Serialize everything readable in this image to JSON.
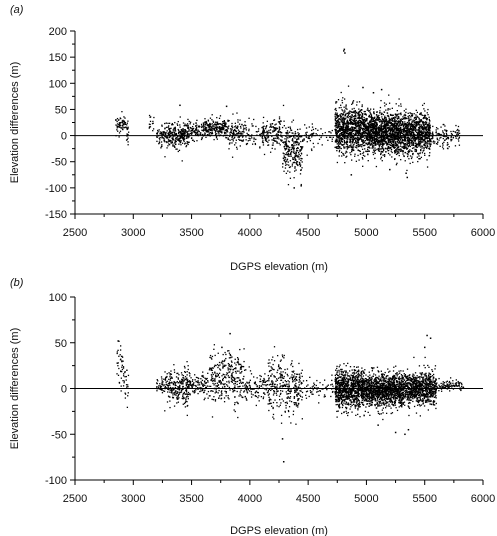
{
  "chart_data": [
    {
      "type": "scatter",
      "panel_label": "(a)",
      "xlabel": "DGPS  elevation (m)",
      "ylabel": "Elevation differences (m)",
      "xlim": [
        2500,
        6000
      ],
      "ylim": [
        -150,
        200
      ],
      "xticks": [
        2500,
        3000,
        3500,
        4000,
        4500,
        5000,
        5500,
        6000
      ],
      "yticks": [
        -150,
        -100,
        -50,
        0,
        50,
        100,
        150,
        200
      ],
      "reference_line_y": 0,
      "marker_color": "#000000",
      "clusters": [
        {
          "x_range": [
            2850,
            2940
          ],
          "y_mean": 22,
          "y_sd": 8,
          "n": 60
        },
        {
          "x_range": [
            2940,
            2960
          ],
          "y_mean": 5,
          "y_sd": 14,
          "n": 20
        },
        {
          "x_range": [
            3130,
            3180
          ],
          "y_mean": 25,
          "y_sd": 8,
          "n": 15
        },
        {
          "x_range": [
            3200,
            3300
          ],
          "y_mean": 0,
          "y_sd": 10,
          "n": 80
        },
        {
          "x_range": [
            3300,
            3480
          ],
          "y_mean": 2,
          "y_sd": 12,
          "n": 250
        },
        {
          "x_range": [
            3480,
            3600
          ],
          "y_mean": 8,
          "y_sd": 9,
          "n": 80
        },
        {
          "x_range": [
            3600,
            3800
          ],
          "y_mean": 15,
          "y_sd": 9,
          "n": 230
        },
        {
          "x_range": [
            3800,
            3950
          ],
          "y_mean": 5,
          "y_sd": 12,
          "n": 120
        },
        {
          "x_range": [
            3950,
            4100
          ],
          "y_mean": 2,
          "y_sd": 10,
          "n": 50
        },
        {
          "x_range": [
            4100,
            4280
          ],
          "y_mean": 3,
          "y_sd": 13,
          "n": 150
        },
        {
          "x_range": [
            4280,
            4450
          ],
          "y_mean": -28,
          "y_sd": 25,
          "n": 250
        },
        {
          "x_range": [
            4450,
            4550
          ],
          "y_mean": 0,
          "y_sd": 12,
          "n": 40
        },
        {
          "x_range": [
            4550,
            4720
          ],
          "y_mean": 5,
          "y_sd": 10,
          "n": 25
        },
        {
          "x_range": [
            4730,
            5000
          ],
          "y_mean": 12,
          "y_sd": 22,
          "n": 900
        },
        {
          "x_range": [
            5000,
            5300
          ],
          "y_mean": 5,
          "y_sd": 20,
          "n": 1200
        },
        {
          "x_range": [
            5300,
            5550
          ],
          "y_mean": 2,
          "y_sd": 20,
          "n": 800
        },
        {
          "x_range": [
            5550,
            5800
          ],
          "y_mean": -2,
          "y_sd": 10,
          "n": 120
        }
      ],
      "outliers": [
        {
          "x": 4810,
          "y": 165
        },
        {
          "x": 4815,
          "y": 158
        },
        {
          "x": 4805,
          "y": 162
        },
        {
          "x": 4970,
          "y": 92
        },
        {
          "x": 5060,
          "y": 82
        },
        {
          "x": 5130,
          "y": 88
        },
        {
          "x": 3400,
          "y": 58
        },
        {
          "x": 3800,
          "y": 56
        },
        {
          "x": 4380,
          "y": -100
        },
        {
          "x": 4440,
          "y": -96
        },
        {
          "x": 5340,
          "y": -72
        },
        {
          "x": 5350,
          "y": -80
        },
        {
          "x": 4870,
          "y": -75
        },
        {
          "x": 5200,
          "y": -65
        }
      ]
    },
    {
      "type": "scatter",
      "panel_label": "(b)",
      "xlabel": "DGPS  elevation (m)",
      "ylabel": "Elevation differences (m)",
      "xlim": [
        2500,
        6000
      ],
      "ylim": [
        -100,
        100
      ],
      "xticks": [
        2500,
        3000,
        3500,
        4000,
        4500,
        5000,
        5500,
        6000
      ],
      "yticks": [
        -100,
        -50,
        0,
        50,
        100
      ],
      "reference_line_y": 0,
      "marker_color": "#000000",
      "clusters": [
        {
          "x_range": [
            2860,
            2920
          ],
          "y_mean": 25,
          "y_sd": 10,
          "n": 40
        },
        {
          "x_range": [
            2920,
            2960
          ],
          "y_mean": 5,
          "y_sd": 12,
          "n": 20
        },
        {
          "x_range": [
            3200,
            3300
          ],
          "y_mean": 2,
          "y_sd": 8,
          "n": 60
        },
        {
          "x_range": [
            3300,
            3480
          ],
          "y_mean": 3,
          "y_sd": 10,
          "n": 220
        },
        {
          "x_range": [
            3480,
            3650
          ],
          "y_mean": 2,
          "y_sd": 7,
          "n": 100
        },
        {
          "x_range": [
            3650,
            3800
          ],
          "y_mean": 10,
          "y_sd": 14,
          "n": 150
        },
        {
          "x_range": [
            3800,
            3950
          ],
          "y_mean": 12,
          "y_sd": 14,
          "n": 150
        },
        {
          "x_range": [
            3950,
            4150
          ],
          "y_mean": 0,
          "y_sd": 8,
          "n": 100
        },
        {
          "x_range": [
            4150,
            4300
          ],
          "y_mean": 5,
          "y_sd": 15,
          "n": 150
        },
        {
          "x_range": [
            4300,
            4450
          ],
          "y_mean": 0,
          "y_sd": 15,
          "n": 150
        },
        {
          "x_range": [
            4450,
            4720
          ],
          "y_mean": 0,
          "y_sd": 6,
          "n": 60
        },
        {
          "x_range": [
            4730,
            5000
          ],
          "y_mean": 0,
          "y_sd": 10,
          "n": 900
        },
        {
          "x_range": [
            5000,
            5300
          ],
          "y_mean": -2,
          "y_sd": 9,
          "n": 1000
        },
        {
          "x_range": [
            5300,
            5600
          ],
          "y_mean": 0,
          "y_sd": 9,
          "n": 800
        },
        {
          "x_range": [
            5600,
            5840
          ],
          "y_mean": 3,
          "y_sd": 3,
          "n": 100
        }
      ],
      "outliers": [
        {
          "x": 2870,
          "y": 52
        },
        {
          "x": 3830,
          "y": 60
        },
        {
          "x": 3760,
          "y": 45
        },
        {
          "x": 4290,
          "y": -80
        },
        {
          "x": 4280,
          "y": -55
        },
        {
          "x": 5330,
          "y": -50
        },
        {
          "x": 5360,
          "y": -45
        },
        {
          "x": 5520,
          "y": 58
        },
        {
          "x": 5550,
          "y": 55
        },
        {
          "x": 5250,
          "y": -48
        },
        {
          "x": 5100,
          "y": -40
        },
        {
          "x": 5500,
          "y": 45
        }
      ]
    }
  ]
}
